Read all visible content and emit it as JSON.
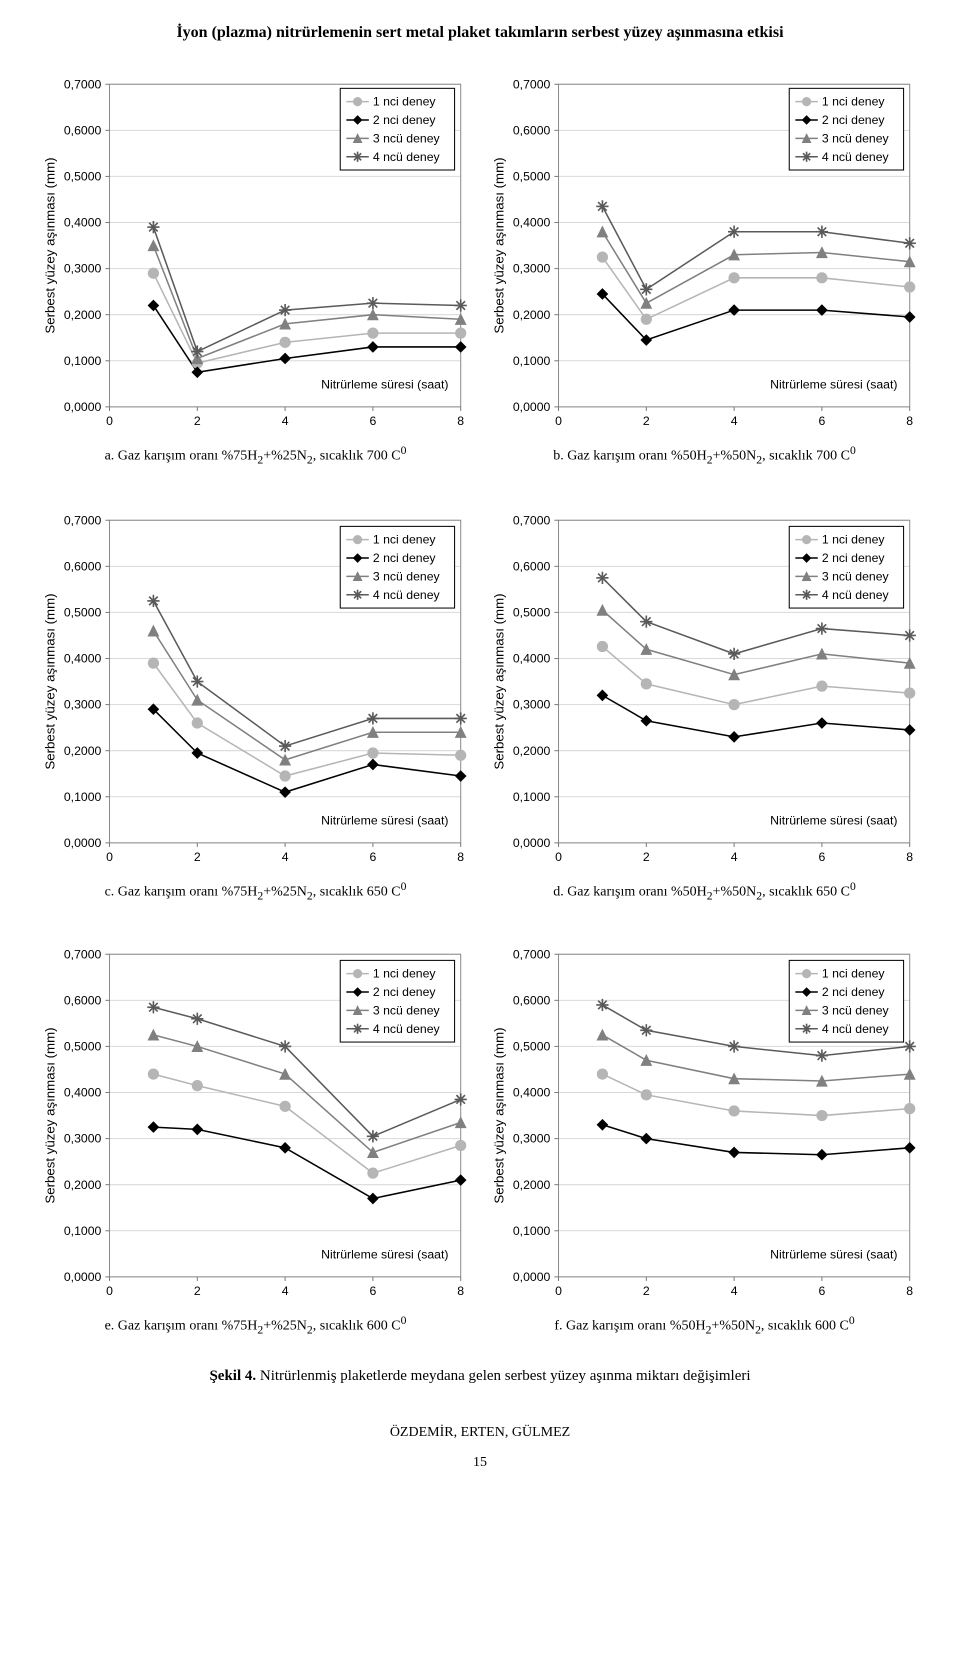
{
  "page_title": "İyon (plazma) nitrürlemenin sert metal plaket takımların serbest yüzey aşınmasına etkisi",
  "common": {
    "y_axis_label": "Serbest yüzey aşınması (mm)",
    "x_axis_label_inside": "Nitrürleme süresi (saat)",
    "series_labels": [
      "1 nci deney",
      "2 nci deney",
      "3 ncü deney",
      "4 ncü deney"
    ],
    "series_colors": [
      "#b5b5b5",
      "#000000",
      "#808080",
      "#5a5a5a"
    ],
    "markers": [
      "circle",
      "diamond",
      "triangle",
      "asterisk"
    ],
    "marker_size": 5,
    "line_width": 1.5,
    "grid_color": "#d9d9d9",
    "border_color": "#8c8c8c",
    "background_color": "#ffffff",
    "xlim": [
      0,
      8
    ],
    "xticks": [
      0,
      2,
      4,
      6,
      8
    ],
    "ylim": [
      0.0,
      0.7
    ],
    "yticks": [
      0.0,
      0.1,
      0.2,
      0.3,
      0.4,
      0.5,
      0.6,
      0.7
    ],
    "ytick_labels": [
      "0,0000",
      "0,1000",
      "0,2000",
      "0,3000",
      "0,4000",
      "0,5000",
      "0,6000",
      "0,7000"
    ],
    "x_data": [
      1,
      2,
      4,
      6,
      8
    ]
  },
  "charts": [
    {
      "id": "a",
      "caption_prefix": "a. Gaz karışım oranı %75H",
      "caption_sub1": "2",
      "caption_mid": "+%25N",
      "caption_sub2": "2",
      "caption_suffix": ", sıcaklık 700 C",
      "caption_sup": "0",
      "legend_pos": "top-right-high",
      "series": [
        [
          0.29,
          0.095,
          0.14,
          0.16,
          0.16
        ],
        [
          0.22,
          0.075,
          0.105,
          0.13,
          0.13
        ],
        [
          0.35,
          0.105,
          0.18,
          0.2,
          0.19
        ],
        [
          0.39,
          0.12,
          0.21,
          0.225,
          0.22
        ]
      ]
    },
    {
      "id": "b",
      "caption_prefix": "b. Gaz karışım oranı %50H",
      "caption_sub1": "2",
      "caption_mid": "+%50N",
      "caption_sub2": "2",
      "caption_suffix": ", sıcaklık 700 C",
      "caption_sup": "0",
      "legend_pos": "top-right-high",
      "series": [
        [
          0.325,
          0.19,
          0.28,
          0.28,
          0.26
        ],
        [
          0.245,
          0.145,
          0.21,
          0.21,
          0.195
        ],
        [
          0.38,
          0.225,
          0.33,
          0.335,
          0.315
        ],
        [
          0.435,
          0.255,
          0.38,
          0.38,
          0.355
        ]
      ]
    },
    {
      "id": "c",
      "caption_prefix": "c. Gaz karışım oranı %75H",
      "caption_sub1": "2",
      "caption_mid": "+%25N",
      "caption_sub2": "2",
      "caption_suffix": ", sıcaklık 650 C",
      "caption_sup": "0",
      "legend_pos": "top-right",
      "series": [
        [
          0.39,
          0.26,
          0.145,
          0.195,
          0.19
        ],
        [
          0.29,
          0.195,
          0.11,
          0.17,
          0.145
        ],
        [
          0.46,
          0.31,
          0.18,
          0.24,
          0.24
        ],
        [
          0.525,
          0.35,
          0.21,
          0.27,
          0.27
        ]
      ]
    },
    {
      "id": "d",
      "caption_prefix": "d. Gaz karışım oranı %50H",
      "caption_sub1": "2",
      "caption_mid": "+%50N",
      "caption_sub2": "2",
      "caption_suffix": ", sıcaklık 650 C",
      "caption_sup": "0",
      "legend_pos": "top-right",
      "series": [
        [
          0.426,
          0.345,
          0.3,
          0.34,
          0.325
        ],
        [
          0.32,
          0.265,
          0.23,
          0.26,
          0.245
        ],
        [
          0.505,
          0.42,
          0.365,
          0.41,
          0.39
        ],
        [
          0.575,
          0.48,
          0.41,
          0.465,
          0.45
        ]
      ]
    },
    {
      "id": "e",
      "caption_prefix": "e. Gaz karışım oranı %75H",
      "caption_sub1": "2",
      "caption_mid": "+%25N",
      "caption_sub2": "2",
      "caption_suffix": ", sıcaklık 600 C",
      "caption_sup": "0",
      "legend_pos": "top-right",
      "series": [
        [
          0.44,
          0.415,
          0.37,
          0.225,
          0.285
        ],
        [
          0.325,
          0.32,
          0.28,
          0.17,
          0.21
        ],
        [
          0.525,
          0.5,
          0.44,
          0.27,
          0.335
        ],
        [
          0.585,
          0.56,
          0.5,
          0.305,
          0.385
        ]
      ]
    },
    {
      "id": "f",
      "caption_prefix": "f. Gaz karışım oranı %50H",
      "caption_sub1": "2",
      "caption_mid": "+%50N",
      "caption_sub2": "2",
      "caption_suffix": ", sıcaklık 600 C",
      "caption_sup": "0",
      "legend_pos": "top-right",
      "series": [
        [
          0.44,
          0.395,
          0.36,
          0.35,
          0.365
        ],
        [
          0.33,
          0.3,
          0.27,
          0.265,
          0.28
        ],
        [
          0.525,
          0.47,
          0.43,
          0.425,
          0.44
        ],
        [
          0.59,
          0.535,
          0.5,
          0.48,
          0.5
        ]
      ]
    }
  ],
  "figure_caption_bold": "Şekil 4.",
  "figure_caption_rest": " Nitrürlenmiş plaketlerde meydana gelen serbest yüzey aşınma miktarı değişimleri",
  "footer_authors": "ÖZDEMİR, ERTEN, GÜLMEZ",
  "footer_page": "15"
}
